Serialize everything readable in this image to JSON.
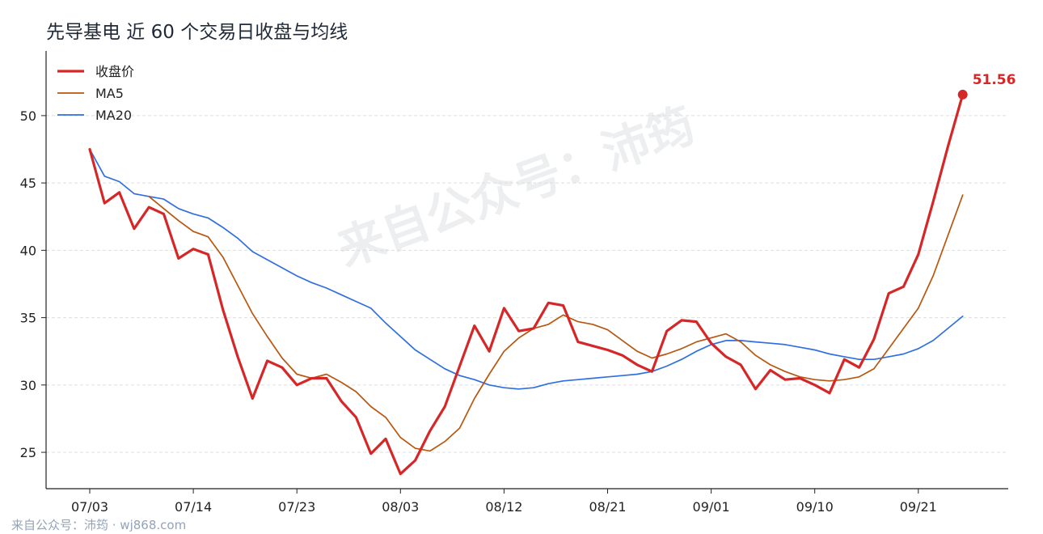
{
  "title": "先导基电 近 60 个交易日收盘与均线",
  "watermark": "来自公众号：沛筠",
  "footer": "来自公众号：沛筠 · wj868.com",
  "colors": {
    "close": "#d62728",
    "ma5": "#b8570f",
    "ma20": "#2f6fe0",
    "grid": "#dddddd",
    "axis": "#222222"
  },
  "chart_data": {
    "type": "line",
    "title": "先导基电 近 60 个交易日收盘与均线",
    "xlabel": "",
    "ylabel": "",
    "ylim": [
      22.3,
      54.8
    ],
    "yticks": [
      25,
      30,
      35,
      40,
      45,
      50
    ],
    "grid": "horizontal dashed",
    "legend_position": "top-left",
    "x_tick_labels": [
      {
        "index": 0,
        "label": "07/03"
      },
      {
        "index": 7,
        "label": "07/14"
      },
      {
        "index": 14,
        "label": "07/23"
      },
      {
        "index": 21,
        "label": "08/03"
      },
      {
        "index": 28,
        "label": "08/12"
      },
      {
        "index": 35,
        "label": "08/21"
      },
      {
        "index": 42,
        "label": "09/01"
      },
      {
        "index": 49,
        "label": "09/10"
      },
      {
        "index": 56,
        "label": "09/21"
      }
    ],
    "last_value_label": "51.56",
    "series": [
      {
        "name": "收盘价",
        "values": [
          47.5,
          43.5,
          44.3,
          41.6,
          43.2,
          42.7,
          39.4,
          40.1,
          39.7,
          35.6,
          32.1,
          29.0,
          31.8,
          31.3,
          30.0,
          30.5,
          30.5,
          28.8,
          27.6,
          24.9,
          26.0,
          23.4,
          24.4,
          26.6,
          28.4,
          31.4,
          34.4,
          32.5,
          35.7,
          34.0,
          34.2,
          36.1,
          35.9,
          33.2,
          32.9,
          32.6,
          32.2,
          31.5,
          31.0,
          34.0,
          34.8,
          34.7,
          33.1,
          32.1,
          31.5,
          29.7,
          31.1,
          30.4,
          30.5,
          30.0,
          29.4,
          31.9,
          31.3,
          33.4,
          36.8,
          37.3,
          39.7,
          43.6,
          47.7,
          51.56
        ],
        "style": "thick"
      },
      {
        "name": "MA5",
        "values": [
          null,
          null,
          null,
          null,
          44.0,
          43.1,
          42.2,
          41.4,
          41.0,
          39.5,
          37.4,
          35.3,
          33.6,
          32.0,
          30.8,
          30.5,
          30.8,
          30.2,
          29.5,
          28.4,
          27.6,
          26.1,
          25.3,
          25.1,
          25.8,
          26.8,
          29.0,
          30.8,
          32.5,
          33.5,
          34.2,
          34.5,
          35.2,
          34.7,
          34.5,
          34.1,
          33.3,
          32.5,
          32.0,
          32.3,
          32.7,
          33.2,
          33.5,
          33.8,
          33.2,
          32.2,
          31.5,
          31.0,
          30.6,
          30.4,
          30.3,
          30.4,
          30.6,
          31.2,
          32.7,
          34.2,
          35.7,
          38.1,
          41.1,
          44.1
        ],
        "style": "thin"
      },
      {
        "name": "MA20",
        "values": [
          47.5,
          45.5,
          45.1,
          44.2,
          44.0,
          43.8,
          43.1,
          42.7,
          42.4,
          41.7,
          40.9,
          39.9,
          39.3,
          38.7,
          38.1,
          37.6,
          37.2,
          36.7,
          36.2,
          35.7,
          34.6,
          33.6,
          32.6,
          31.9,
          31.2,
          30.7,
          30.4,
          30.0,
          29.8,
          29.7,
          29.8,
          30.1,
          30.3,
          30.4,
          30.5,
          30.6,
          30.7,
          30.8,
          31.0,
          31.4,
          31.9,
          32.5,
          33.0,
          33.3,
          33.3,
          33.2,
          33.1,
          33.0,
          32.8,
          32.6,
          32.3,
          32.1,
          31.9,
          31.9,
          32.1,
          32.3,
          32.7,
          33.3,
          34.2,
          35.1
        ],
        "style": "thin"
      }
    ]
  }
}
